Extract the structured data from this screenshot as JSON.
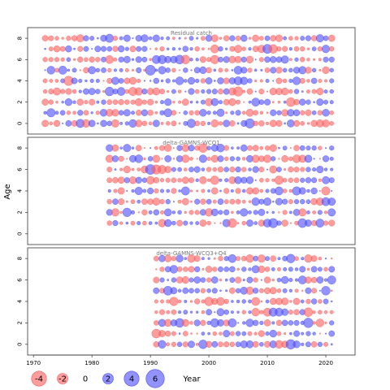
{
  "chart_data": {
    "type": "scatter",
    "subtype": "bubble-residuals",
    "ylabel": "Age",
    "xlabel": "Year",
    "xlim": [
      1969,
      2025
    ],
    "ylim": [
      -1,
      9
    ],
    "x_ticks": [
      1970,
      1980,
      1990,
      2000,
      2010,
      2020
    ],
    "y_ticks": [
      0,
      2,
      4,
      6,
      8
    ],
    "colors": {
      "positive": "#4b4bff",
      "negative": "#ff5a5a"
    },
    "panels": [
      {
        "title": "Residual catch",
        "year_start": 1972,
        "year_end": 2021,
        "ages": [
          0,
          1,
          2,
          3,
          4,
          5,
          6,
          7,
          8
        ],
        "seed": 11
      },
      {
        "title": "delta-GAMNS-WCQ1",
        "year_start": 1983,
        "year_end": 2021,
        "ages": [
          1,
          2,
          3,
          4,
          5,
          6,
          7,
          8
        ],
        "seed": 23
      },
      {
        "title": "delta-GAMNS-WCQ3+Q4",
        "year_start": 1991,
        "year_end": 2021,
        "ages": [
          0,
          1,
          2,
          3,
          4,
          5,
          6,
          7,
          8
        ],
        "seed": 37
      }
    ],
    "legend": {
      "values": [
        -4,
        -2,
        0,
        2,
        4,
        6
      ],
      "labels": [
        "-4",
        "-2",
        "0",
        "2",
        "4",
        "6"
      ],
      "title": "Year"
    }
  }
}
